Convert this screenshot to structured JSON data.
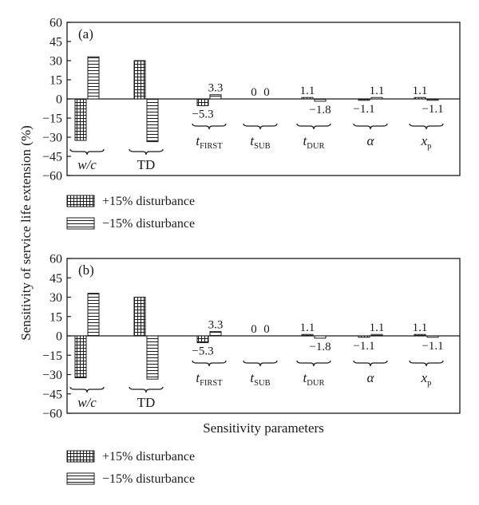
{
  "chart_data": {
    "type": "bar",
    "ylabel": "Sensitivity of service life extension (%)",
    "xlabel": "Sensitivity parameters",
    "ylim": [
      -60,
      60
    ],
    "yticks": [
      "60",
      "45",
      "30",
      "15",
      "0",
      "-15",
      "-30",
      "-45",
      "-60"
    ],
    "grid": false,
    "legend_position": "below each panel",
    "legend": [
      {
        "label": "+15% disturbance",
        "pattern": "grid"
      },
      {
        "label": "−15% disturbance",
        "pattern": "horizontal-lines"
      }
    ],
    "parameters": [
      {
        "main": "w/c",
        "sub": "",
        "italic": true,
        "brace": "below"
      },
      {
        "main": "TD",
        "sub": "",
        "italic": false,
        "brace": "below"
      },
      {
        "main": "t",
        "sub": "FIRST",
        "italic": true,
        "brace": "above"
      },
      {
        "main": "t",
        "sub": "SUB",
        "italic": true,
        "brace": "above"
      },
      {
        "main": "t",
        "sub": "DUR",
        "italic": true,
        "brace": "above"
      },
      {
        "main": "α",
        "sub": "",
        "italic": true,
        "brace": "above"
      },
      {
        "main": "x",
        "sub": "p",
        "italic": true,
        "brace": "above"
      }
    ],
    "panels": [
      {
        "label": "(a)",
        "series": [
          {
            "name": "+15% disturbance",
            "values": [
              -32.5,
              30,
              -5.3,
              0,
              1.1,
              -1.1,
              1.1
            ],
            "data_labels": [
              "",
              "",
              "−5.3",
              "0",
              "1.1",
              "−1.1",
              "1.1"
            ]
          },
          {
            "name": "−15% disturbance",
            "values": [
              33,
              -33.5,
              3.3,
              0,
              -1.8,
              1.1,
              -1.1
            ],
            "data_labels": [
              "",
              "",
              "3.3",
              "0",
              "−1.8",
              "1.1",
              "−1.1"
            ]
          }
        ]
      },
      {
        "label": "(b)",
        "series": [
          {
            "name": "+15% disturbance",
            "values": [
              -32.5,
              30,
              -5.3,
              0,
              1.1,
              -1.1,
              1.1
            ],
            "data_labels": [
              "",
              "",
              "−5.3",
              "0",
              "1.1",
              "−1.1",
              "1.1"
            ]
          },
          {
            "name": "−15% disturbance",
            "values": [
              33,
              -33.5,
              3.3,
              0,
              -1.8,
              1.1,
              -1.1
            ],
            "data_labels": [
              "",
              "",
              "3.3",
              "0",
              "−1.8",
              "1.1",
              "−1.1"
            ]
          }
        ]
      }
    ]
  }
}
